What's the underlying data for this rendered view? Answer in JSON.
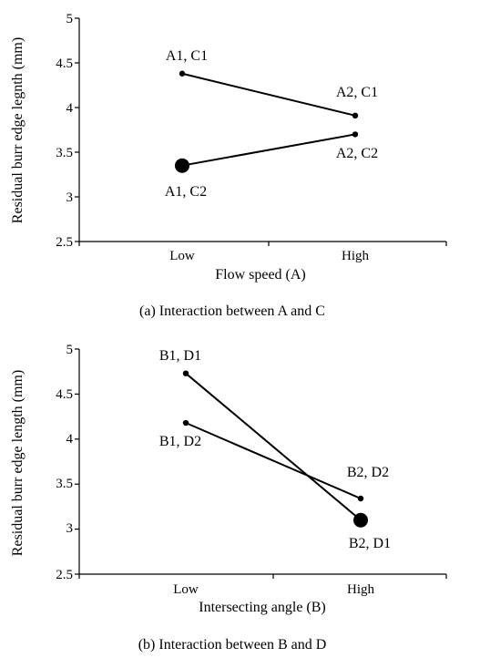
{
  "chart_data": [
    {
      "type": "line",
      "title": "",
      "caption": "(a)  Interaction between A and C",
      "xlabel": "Flow speed (A)",
      "ylabel": "Residual burr edge legnth (mm)",
      "categories": [
        "Low",
        "High"
      ],
      "ylim": [
        2.5,
        5
      ],
      "yticks": [
        "2.5",
        "3",
        "3.5",
        "4",
        "4.5",
        "5"
      ],
      "grid": false,
      "series": [
        {
          "values": [
            4.38,
            3.91
          ],
          "labels": [
            "A1, C1",
            "A2, C1"
          ],
          "marker_sizes": [
            "small",
            "small"
          ]
        },
        {
          "values": [
            3.35,
            3.7
          ],
          "labels": [
            "A1, C2",
            "A2, C2"
          ],
          "marker_sizes": [
            "large",
            "small"
          ]
        }
      ]
    },
    {
      "type": "line",
      "title": "",
      "caption": "(b) Interaction between B and D",
      "xlabel": "Intersecting angle (B)",
      "ylabel": "Residual burr edge length (mm)",
      "categories": [
        "Low",
        "High"
      ],
      "ylim": [
        2.5,
        5
      ],
      "yticks": [
        "2.5",
        "3",
        "3.5",
        "4",
        "4.5",
        "5"
      ],
      "grid": false,
      "series": [
        {
          "values": [
            4.73,
            3.1
          ],
          "labels": [
            "B1, D1",
            "B2, D1"
          ],
          "marker_sizes": [
            "small",
            "large"
          ]
        },
        {
          "values": [
            4.18,
            3.34
          ],
          "labels": [
            "B1, D2",
            "B2, D2"
          ],
          "marker_sizes": [
            "small",
            "small"
          ]
        }
      ]
    }
  ]
}
